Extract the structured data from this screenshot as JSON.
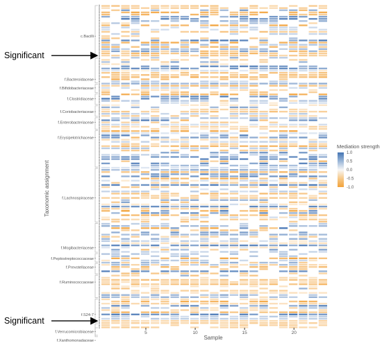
{
  "chart_data": {
    "type": "heatmap",
    "xlabel": "Sample",
    "ylabel": "Taxonomic assignment",
    "x_ticks": [
      5,
      10,
      15,
      20
    ],
    "x_range": [
      1,
      23
    ],
    "row_count": 150,
    "y_labels": [
      {
        "label": "c.Bacilli",
        "row": 14
      },
      {
        "label": "f.Bacteroidaceae",
        "row": 34
      },
      {
        "label": "f.Bifidobacteriaceae",
        "row": 38
      },
      {
        "label": "f.Clostridiaceae",
        "row": 43
      },
      {
        "label": "f.Coriobacteriaceae",
        "row": 49
      },
      {
        "label": "f.Enterobacteriaceae",
        "row": 54
      },
      {
        "label": "f.Erysipelotrichaceae",
        "row": 61
      },
      {
        "label": "f.Lachnospiraceae",
        "row": 89
      },
      {
        "label": "f.Mogibacteriaceae",
        "row": 112
      },
      {
        "label": "f.Peptostreptococcaceae",
        "row": 117
      },
      {
        "label": "f.Prevotellaceae",
        "row": 121
      },
      {
        "label": "f.Ruminococcaceae",
        "row": 128
      },
      {
        "label": "f.S24-7",
        "row": 143
      },
      {
        "label": "f.Verrucomicrobiaceae",
        "row": 151
      },
      {
        "label": "f.Xanthomonadaceae",
        "row": 155
      }
    ],
    "legend": {
      "title": "Mediation strength",
      "ticks": [
        1.0,
        0.5,
        0.0,
        -0.5,
        -1.0
      ],
      "tick_labels": [
        "1.0",
        "0.5",
        "0.0",
        "-0.5",
        "-1.0"
      ],
      "colors": [
        "#4575b4",
        "#9ab6d8",
        "#f7f7f7",
        "#f6c98a",
        "#f2a23a"
      ]
    },
    "annotations": [
      {
        "text": "Significant",
        "row": 23
      },
      {
        "text": "Significant",
        "row": 146
      }
    ],
    "note": "150 rows x 23 samples of mediation values in [-1, 1]; individual cell values are dense and approximate."
  }
}
